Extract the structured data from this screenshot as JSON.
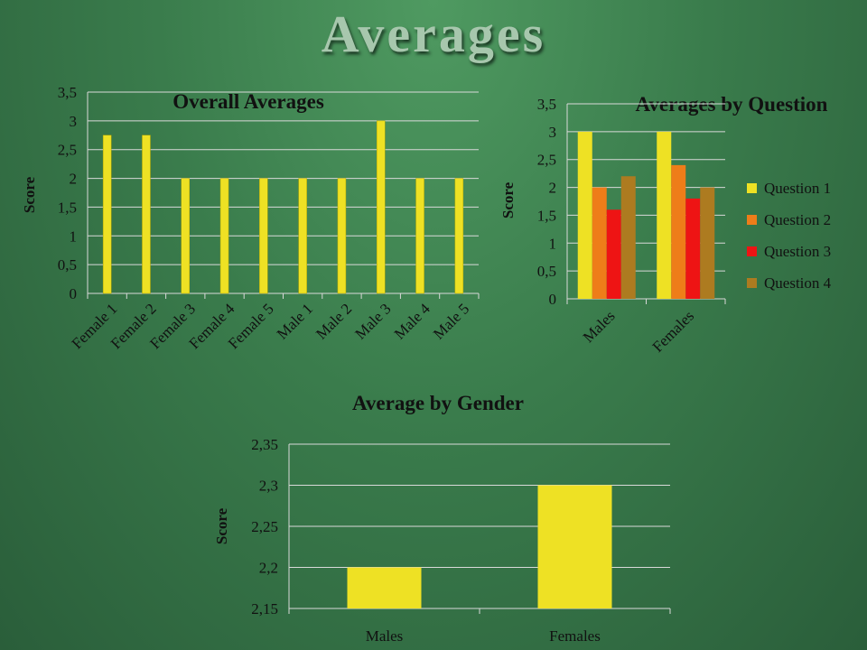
{
  "slide": {
    "title": "Averages"
  },
  "colors": {
    "q1": "#eee124",
    "q2": "#ee7d19",
    "q3": "#ee1414",
    "q4": "#ad7b20",
    "bar": "#eee124",
    "grid": "#d9d9d9"
  },
  "chart_data": [
    {
      "type": "bar",
      "title": "Overall Averages",
      "xlabel": "",
      "ylabel": "Score",
      "ylim": [
        0,
        3.5
      ],
      "yticks": [
        "0",
        "0,5",
        "1",
        "1,5",
        "2",
        "2,5",
        "3",
        "3,5"
      ],
      "categories": [
        "Female 1",
        "Female 2",
        "Female 3",
        "Female 4",
        "Female 5",
        "Male 1",
        "Male 2",
        "Male 3",
        "Male 4",
        "Male 5"
      ],
      "values": [
        2.75,
        2.75,
        2,
        2,
        2,
        2,
        2,
        3,
        2,
        2
      ],
      "grid": true
    },
    {
      "type": "bar",
      "title": "Averages by Question",
      "xlabel": "",
      "ylabel": "Score",
      "ylim": [
        0,
        3.5
      ],
      "yticks": [
        "0",
        "0,5",
        "1",
        "1,5",
        "2",
        "2,5",
        "3",
        "3,5"
      ],
      "categories": [
        "Males",
        "Females"
      ],
      "series": [
        {
          "name": "Question 1",
          "values": [
            3,
            3
          ]
        },
        {
          "name": "Question 2",
          "values": [
            2,
            2.4
          ]
        },
        {
          "name": "Question 3",
          "values": [
            1.6,
            1.8
          ]
        },
        {
          "name": "Question 4",
          "values": [
            2.2,
            2
          ]
        }
      ],
      "legend": "right",
      "grid": true
    },
    {
      "type": "bar",
      "title": "Average by Gender",
      "xlabel": "",
      "ylabel": "Score",
      "ylim": [
        2.15,
        2.35
      ],
      "yticks": [
        "2,15",
        "2,2",
        "2,25",
        "2,3",
        "2,35"
      ],
      "categories": [
        "Males",
        "Females"
      ],
      "values": [
        2.2,
        2.3
      ],
      "grid": true
    }
  ]
}
